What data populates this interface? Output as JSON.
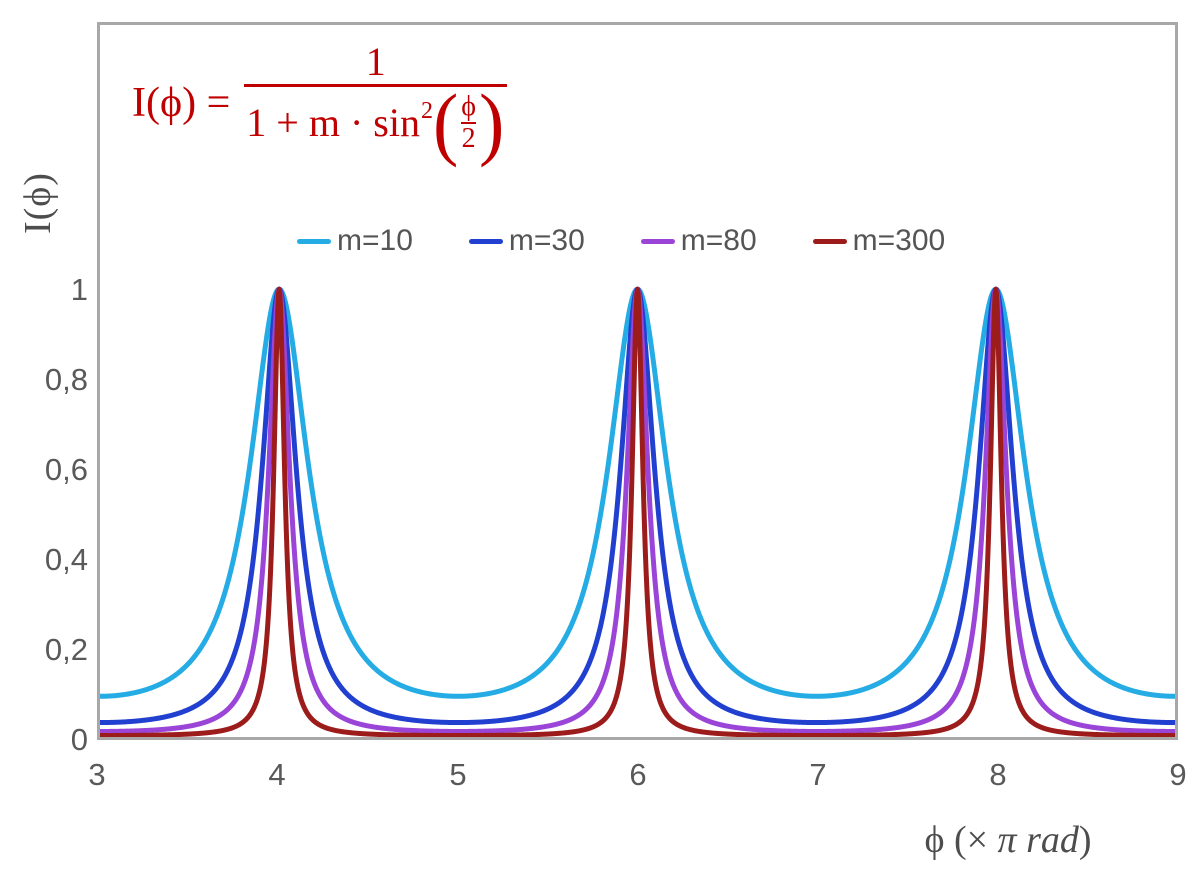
{
  "formula": {
    "lhs": "I(ϕ) =",
    "numerator": "1",
    "denominator_prefix": "1 + m · sin",
    "denominator_exponent": "2",
    "paren_open": "(",
    "paren_close": ")",
    "inner_numerator": "ϕ",
    "inner_denominator": "2",
    "color": "#c00000"
  },
  "axes": {
    "y_title": "I(ϕ)",
    "x_title_phi": "ϕ  (× ",
    "x_title_pi_rad": "π rad",
    "x_title_close": ")",
    "x_ticks": [
      "3",
      "4",
      "5",
      "6",
      "7",
      "8",
      "9"
    ],
    "y_ticks": [
      "1",
      "0,8",
      "0,6",
      "0,4",
      "0,2",
      "0"
    ],
    "axis_color": "#a8a8a8",
    "tick_text_color": "#595959"
  },
  "chart_data": {
    "type": "line",
    "title": "Airy-type transmission function I(ϕ) = 1 / (1 + m·sin²(ϕ/2)) for several m",
    "xlabel": "ϕ (× π rad)",
    "ylabel": "I(ϕ)",
    "x_unit": "multiples of π rad",
    "xlim": [
      3,
      9
    ],
    "ylim": [
      0,
      1.59
    ],
    "x_tick_values": [
      3,
      4,
      5,
      6,
      7,
      8,
      9
    ],
    "y_tick_values": [
      0,
      0.2,
      0.4,
      0.6,
      0.8,
      1
    ],
    "grid": false,
    "legend_position": "top-center",
    "function": "I(x) = 1 / (1 + m * sin^2(x*pi/2)) where x is phase in units of pi rad",
    "peaks_at_x": [
      4,
      6,
      8
    ],
    "peak_value": 1,
    "samples_per_curve": 1500,
    "series": [
      {
        "name": "m=10",
        "m": 10,
        "color": "#25ace4",
        "min_value": 0.0909
      },
      {
        "name": "m=30",
        "m": 30,
        "color": "#2240d0",
        "min_value": 0.0323
      },
      {
        "name": "m=80",
        "m": 80,
        "color": "#9b44d8",
        "min_value": 0.0123
      },
      {
        "name": "m=300",
        "m": 300,
        "color": "#9c1b1b",
        "min_value": 0.0033
      }
    ]
  }
}
